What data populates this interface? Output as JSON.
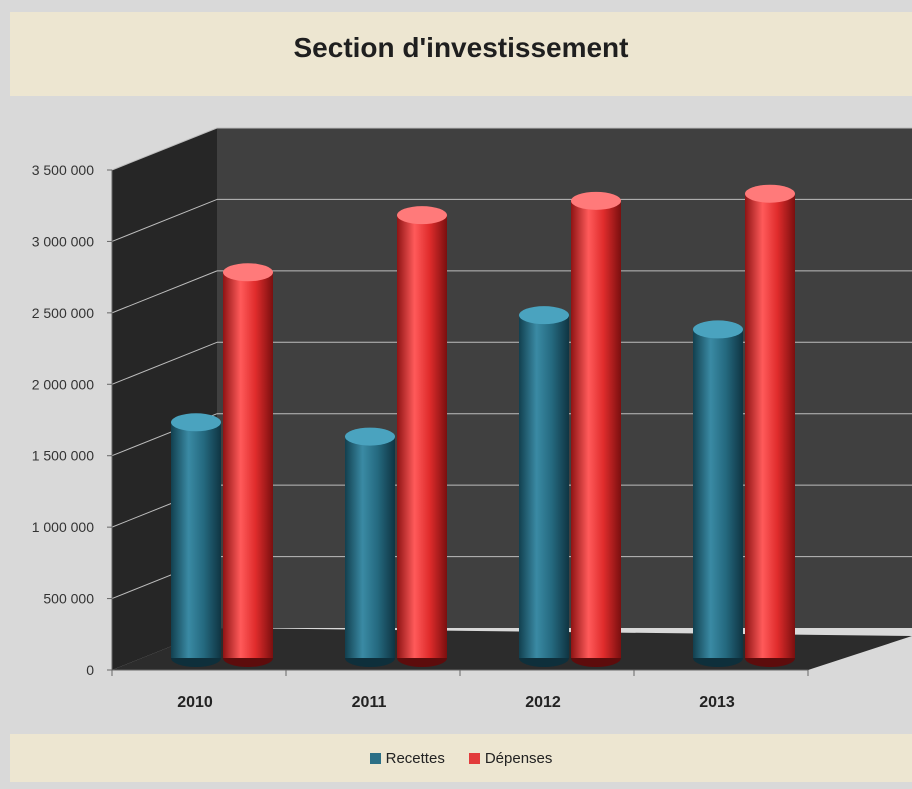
{
  "chart_data": {
    "type": "bar",
    "title": "Section d'investissement",
    "categories": [
      "2010",
      "2011",
      "2012",
      "2013"
    ],
    "series": [
      {
        "name": "Recettes",
        "color": "#2b6f86",
        "values": [
          1650000,
          1550000,
          2400000,
          2300000
        ]
      },
      {
        "name": "Dépenses",
        "color": "#e23b3b",
        "values": [
          2700000,
          3100000,
          3200000,
          3250000
        ]
      }
    ],
    "yticks": [
      "0",
      "500 000",
      "1 000 000",
      "1 500 000",
      "2 000 000",
      "2 500 000",
      "3 000 000",
      "3 500 000"
    ],
    "ylim": [
      0,
      3500000
    ],
    "grid": true,
    "legend_position": "bottom",
    "colors": {
      "back_wall": "#404040",
      "side_wall": "#262626",
      "floor": "#2c2c2c",
      "gridline": "#bdbdbd"
    }
  }
}
